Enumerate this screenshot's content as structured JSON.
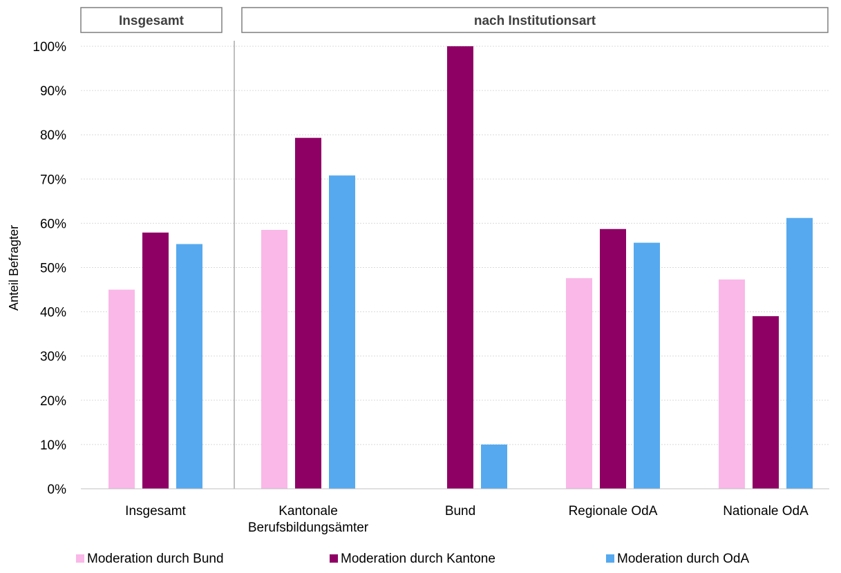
{
  "chart_data": {
    "type": "bar",
    "group_headers": [
      "Insgesamt",
      "nach Institutionsart"
    ],
    "categories": [
      "Insgesamt",
      "Kantonale Berufsbildungsämter",
      "Bund",
      "Regionale OdA",
      "Nationale OdA"
    ],
    "category_label_lines": [
      [
        "Insgesamt"
      ],
      [
        "Kantonale",
        "Berufsbildungsämter"
      ],
      [
        "Bund"
      ],
      [
        "Regionale OdA"
      ],
      [
        "Nationale OdA"
      ]
    ],
    "series": [
      {
        "name": "Moderation durch Bund",
        "color": "#f9b8e8",
        "values": [
          45,
          58.5,
          0,
          47.6,
          47.3
        ]
      },
      {
        "name": "Moderation durch Kantone",
        "color": "#8f0065",
        "values": [
          57.9,
          79.3,
          100,
          58.7,
          39
        ]
      },
      {
        "name": "Moderation durch OdA",
        "color": "#56a9ef",
        "values": [
          55.3,
          70.8,
          10,
          55.6,
          61.2
        ]
      }
    ],
    "ylabel": "Anteil Befragter",
    "ylim": [
      0,
      100
    ],
    "yticks": [
      "0%",
      "10%",
      "20%",
      "30%",
      "40%",
      "50%",
      "60%",
      "70%",
      "80%",
      "90%",
      "100%"
    ],
    "grid": true,
    "legend_position": "bottom"
  }
}
